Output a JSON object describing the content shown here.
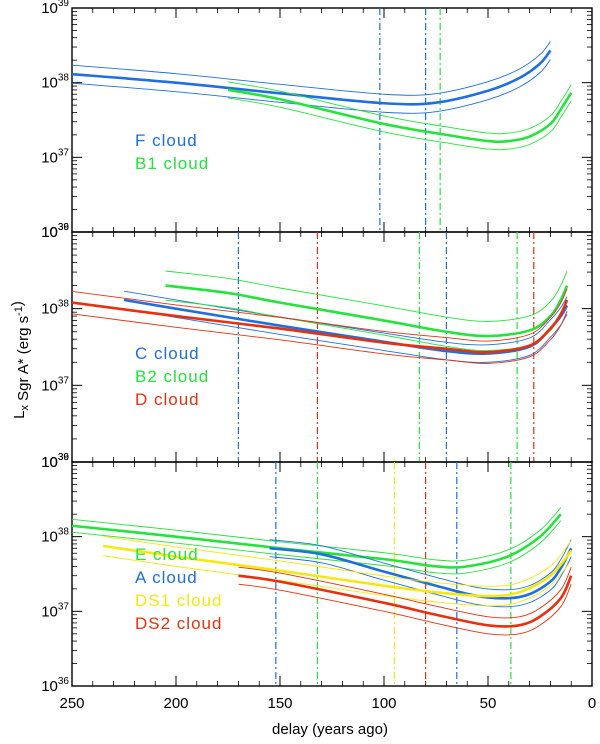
{
  "chart_data": {
    "type": "line",
    "xlabel": "delay (years ago)",
    "ylabel": "L<sub>x</sub> Sgr A* (erg s<sup>-1</sup>)",
    "x_ticks": [
      "250",
      "200",
      "150",
      "100",
      "50",
      "0"
    ],
    "y_ticks": [
      "10^36",
      "10^37",
      "10^38",
      "10^39"
    ],
    "xlim": [
      250,
      0
    ],
    "ylim": [
      1e+36,
      1e+39
    ],
    "y_scale": "log",
    "colors": {
      "blue": "#1f6fe0",
      "green": "#22e43a",
      "red": "#e8300e",
      "yellow": "#f6e80f"
    },
    "panels": [
      {
        "series": [
          {
            "name": "F cloud",
            "color": "blue",
            "x": [
              250,
              200,
              150,
              100,
              75,
              50,
              35,
              25,
              20
            ],
            "y": [
              1.3e+38,
              1e+38,
              7.2e+37,
              5.3e+37,
              5.4e+37,
              7.8e+37,
              1.15e+38,
              1.8e+38,
              2.7e+38
            ],
            "band": 1.32,
            "vlines": [
              102,
              80
            ]
          },
          {
            "name": "B1 cloud",
            "color": "green",
            "x": [
              175,
              150,
              100,
              70,
              50,
              40,
              30,
              20,
              15,
              10
            ],
            "y": [
              8e+37,
              6e+37,
              2.8e+37,
              2e+37,
              1.65e+37,
              1.65e+37,
              1.9e+37,
              2.8e+37,
              4.4e+37,
              7.3e+37
            ],
            "band": 1.28,
            "vlines": [
              73
            ]
          }
        ]
      },
      {
        "series": [
          {
            "name": "C cloud",
            "color": "blue",
            "x": [
              225,
              200,
              150,
              100,
              70,
              50,
              30,
              20,
              15,
              12
            ],
            "y": [
              1.3e+38,
              1e+38,
              6e+37,
              3.7e+37,
              2.8e+37,
              2.6e+37,
              3.2e+37,
              5.5e+37,
              8e+37,
              1.1e+38
            ],
            "band": 1.3,
            "vlines": [
              170,
              70
            ]
          },
          {
            "name": "B2 cloud",
            "color": "green",
            "x": [
              205,
              175,
              150,
              100,
              70,
              50,
              30,
              20,
              15,
              12
            ],
            "y": [
              2e+38,
              1.6e+38,
              1.2e+38,
              7e+37,
              5e+37,
              4.4e+37,
              5.2e+37,
              8e+37,
              1.3e+38,
              2e+38
            ],
            "band": 1.55,
            "vlines": [
              83,
              36
            ]
          },
          {
            "name": "D cloud",
            "color": "red",
            "x": [
              250,
              200,
              150,
              100,
              70,
              50,
              30,
              20,
              15,
              12
            ],
            "y": [
              1.2e+38,
              8e+37,
              5.5e+37,
              3.6e+37,
              3e+37,
              2.7e+37,
              3.3e+37,
              5.5e+37,
              8.5e+37,
              1.3e+38
            ],
            "band": 1.4,
            "vlines": [
              132,
              28
            ]
          }
        ]
      },
      {
        "series": [
          {
            "name": "E cloud",
            "color": "green",
            "x": [
              250,
              200,
              150,
              100,
              75,
              60,
              40,
              25,
              15
            ],
            "y": [
              1.4e+38,
              1e+38,
              7e+37,
              5e+37,
              4e+37,
              4e+37,
              5.5e+37,
              1e+38,
              2e+38
            ],
            "band": 1.22,
            "vlines": [
              132,
              39
            ]
          },
          {
            "name": "A cloud",
            "color": "blue",
            "x": [
              155,
              130,
              100,
              75,
              55,
              40,
              30,
              20,
              15,
              10
            ],
            "y": [
              7e+37,
              5.8e+37,
              3.4e+37,
              2.2e+37,
              1.6e+37,
              1.5e+37,
              1.7e+37,
              2.5e+37,
              3.8e+37,
              7e+37
            ],
            "band": 1.3,
            "vlines": [
              152,
              65
            ]
          },
          {
            "name": "DS1 cloud",
            "color": "yellow",
            "x": [
              235,
              200,
              150,
              100,
              75,
              50,
              35,
              20,
              10
            ],
            "y": [
              7.5e+37,
              5.4e+37,
              3.5e+37,
              2.2e+37,
              1.8e+37,
              1.6e+37,
              1.8e+37,
              3e+37,
              6.5e+37
            ],
            "band": 1.35,
            "vlines": [
              95
            ]
          },
          {
            "name": "DS2 cloud",
            "color": "red",
            "x": [
              170,
              150,
              100,
              75,
              50,
              35,
              25,
              15,
              10
            ],
            "y": [
              3e+37,
              2.5e+37,
              1.3e+37,
              9e+36,
              6.5e+36,
              6.5e+36,
              8.5e+36,
              1.5e+37,
              3e+37
            ],
            "band": 1.3,
            "vlines": [
              80
            ]
          }
        ]
      }
    ]
  }
}
